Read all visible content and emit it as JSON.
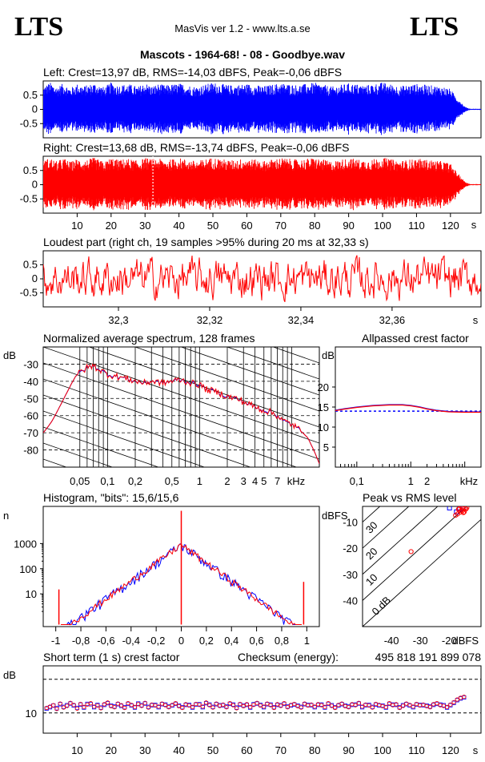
{
  "header": {
    "logo_left": "LTS",
    "logo_right": "LTS",
    "app": "MasVis ver 1.2 - www.lts.a.se",
    "file_title": "Mascots - 1964-68! - 08 - Goodbye.wav"
  },
  "colors": {
    "left": "#0000ff",
    "right": "#ff0000",
    "accent": "#ff0000"
  },
  "chart_data": [
    {
      "id": "left",
      "type": "line",
      "title": "Left: Crest=13,97 dB, RMS=-14,03 dBFS, Peak=-0,06 dBFS",
      "xlim": [
        0,
        129
      ],
      "ylim": [
        -1,
        1
      ],
      "y_ticks": [
        "0.5",
        "0",
        "-0.5"
      ],
      "envelope": {
        "x": [
          0,
          2,
          4,
          6,
          8,
          10,
          12,
          15,
          18,
          20,
          22,
          25,
          28,
          30,
          32,
          34,
          36,
          40,
          45,
          50,
          55,
          60,
          65,
          70,
          75,
          80,
          85,
          90,
          95,
          100,
          105,
          110,
          115,
          118,
          120,
          121,
          122,
          123,
          124,
          125,
          126
        ],
        "upper": [
          0.8,
          0.95,
          0.8,
          0.92,
          0.75,
          0.9,
          0.82,
          0.93,
          0.78,
          0.95,
          0.85,
          0.9,
          0.8,
          0.94,
          0.82,
          0.9,
          0.85,
          0.92,
          0.8,
          0.95,
          0.85,
          0.9,
          0.82,
          0.93,
          0.86,
          0.94,
          0.8,
          0.92,
          0.85,
          0.95,
          0.82,
          0.9,
          0.84,
          0.8,
          0.72,
          0.55,
          0.4,
          0.28,
          0.12,
          0.05,
          0.02
        ]
      }
    },
    {
      "id": "right",
      "type": "line",
      "title": "Right: Crest=13,68 dB, RMS=-13,74 dBFS, Peak=-0,06 dBFS",
      "xlim": [
        0,
        129
      ],
      "ylim": [
        -1,
        1
      ],
      "y_ticks": [
        "0.5",
        "0",
        "-0.5"
      ],
      "x_ticks": [
        "10",
        "20",
        "30",
        "40",
        "50",
        "60",
        "70",
        "80",
        "90",
        "100",
        "110",
        "120"
      ],
      "x_unit": "s",
      "marker_x": 32.33,
      "envelope": {
        "x": [
          0,
          2,
          4,
          6,
          8,
          10,
          12,
          15,
          18,
          20,
          22,
          25,
          28,
          30,
          32,
          34,
          36,
          40,
          45,
          50,
          55,
          60,
          65,
          70,
          75,
          80,
          85,
          90,
          95,
          100,
          105,
          110,
          115,
          118,
          120,
          121,
          122,
          123,
          124,
          125,
          126
        ],
        "upper": [
          0.85,
          0.95,
          0.82,
          0.94,
          0.8,
          0.92,
          0.85,
          0.95,
          0.8,
          0.96,
          0.88,
          0.92,
          0.84,
          0.95,
          0.9,
          0.92,
          0.86,
          0.94,
          0.83,
          0.96,
          0.86,
          0.93,
          0.84,
          0.95,
          0.88,
          0.95,
          0.82,
          0.94,
          0.86,
          0.96,
          0.84,
          0.92,
          0.86,
          0.82,
          0.74,
          0.58,
          0.42,
          0.3,
          0.14,
          0.06,
          0.02
        ]
      }
    },
    {
      "id": "loudest",
      "type": "line",
      "title": "Loudest part (right ch, 19 samples >95% during 20 ms at 32,33 s)",
      "xlim": [
        32.2835,
        32.3795
      ],
      "ylim": [
        -1,
        1
      ],
      "y_ticks": [
        "0.5",
        "0",
        "-0.5"
      ],
      "x_ticks": [
        "32,3",
        "32,32",
        "32,34",
        "32,36"
      ],
      "x_tick_values": [
        32.3,
        32.32,
        32.34,
        32.36
      ],
      "x_unit": "s"
    },
    {
      "id": "spectrum",
      "type": "line",
      "title": "Normalized average spectrum, 128 frames",
      "ylabel": "dB",
      "xscale": "log",
      "xlim": [
        0.02,
        20
      ],
      "ylim": [
        -90,
        -20
      ],
      "y_ticks": [
        -30,
        -40,
        -50,
        -60,
        -70,
        -80
      ],
      "x_ticks": [
        "0,05",
        "0,1",
        "0,2",
        "0,5",
        "1",
        "2",
        "3",
        "4",
        "5",
        "7"
      ],
      "x_tick_values": [
        0.05,
        0.1,
        0.2,
        0.5,
        1,
        2,
        3,
        4,
        5,
        7
      ],
      "x_unit": "kHz",
      "series": [
        {
          "x": [
            0.02,
            0.025,
            0.03,
            0.035,
            0.04,
            0.045,
            0.05,
            0.06,
            0.07,
            0.08,
            0.1,
            0.12,
            0.15,
            0.2,
            0.25,
            0.3,
            0.4,
            0.5,
            0.6,
            0.8,
            1,
            1.2,
            1.5,
            2,
            2.5,
            3,
            4,
            5,
            6,
            7,
            8,
            10,
            12,
            15,
            20
          ],
          "y": [
            -70,
            -63,
            -55,
            -48,
            -42,
            -37,
            -35,
            -32,
            -31,
            -33,
            -36,
            -37,
            -38,
            -40,
            -41,
            -40,
            -41,
            -40,
            -39,
            -41,
            -42,
            -45,
            -46,
            -49,
            -50,
            -52,
            -55,
            -57,
            -58,
            -60,
            -63,
            -65,
            -68,
            -73,
            -88
          ]
        }
      ]
    },
    {
      "id": "allpass",
      "type": "line",
      "title": "Allpassed crest factor",
      "ylabel": "dB",
      "xscale": "log",
      "xlim": [
        0.04,
        20
      ],
      "ylim": [
        0,
        30
      ],
      "y_ticks": [
        20,
        15,
        10,
        5
      ],
      "x_ticks": [
        "0,1",
        "1",
        "2",
        "kHz"
      ],
      "x_tick_values": [
        0.1,
        1,
        2
      ],
      "reference": 13.97,
      "series": [
        {
          "x": [
            0.04,
            0.06,
            0.1,
            0.2,
            0.4,
            0.7,
            1,
            1.5,
            2,
            3,
            5,
            10,
            20
          ],
          "y": [
            14.2,
            14.6,
            15.0,
            15.4,
            15.6,
            15.6,
            15.4,
            15.0,
            14.6,
            14.2,
            13.9,
            13.8,
            13.8
          ]
        },
        {
          "x": [
            0.04,
            0.06,
            0.1,
            0.2,
            0.4,
            0.7,
            1,
            1.5,
            2,
            3,
            5,
            10,
            20
          ],
          "y": [
            14.1,
            14.5,
            14.9,
            15.3,
            15.5,
            15.5,
            15.3,
            14.9,
            14.5,
            14.1,
            13.8,
            13.7,
            13.7
          ]
        }
      ]
    },
    {
      "id": "histogram",
      "type": "line",
      "title": "Histogram, \"bits\": 15,6/15,6",
      "ylabel": "n",
      "yscale": "log",
      "xlim": [
        -1.1,
        1.1
      ],
      "ylim": [
        0.5,
        30000
      ],
      "y_ticks": [
        "1000",
        "100",
        "10"
      ],
      "y_tick_values": [
        1000,
        100,
        10
      ],
      "x_ticks": [
        "-1",
        "-0,8",
        "-0,6",
        "-0,4",
        "-0,2",
        "0",
        "0,2",
        "0,4",
        "0,6",
        "0,8",
        "1"
      ],
      "x_tick_values": [
        -1,
        -0.8,
        -0.6,
        -0.4,
        -0.2,
        0,
        0.2,
        0.4,
        0.6,
        0.8,
        1
      ],
      "peak_center": 900,
      "spikes": [
        {
          "x": -0.975,
          "y": 15
        },
        {
          "x": 0,
          "y": 20000
        },
        {
          "x": 0.975,
          "y": 30
        }
      ]
    },
    {
      "id": "peak_vs_rms",
      "type": "scatter",
      "title": "Peak vs RMS level",
      "ylabel": "dBFS",
      "xlabel": "dBFS",
      "xlim": [
        -50,
        -9
      ],
      "ylim": [
        -50,
        -4
      ],
      "y_ticks": [
        -10,
        -20,
        -30,
        -40
      ],
      "x_ticks": [
        "-40",
        "-30",
        "-20"
      ],
      "x_tick_values": [
        -40,
        -30,
        -20
      ],
      "diagonals": [
        {
          "label": "0 dB",
          "offset": 0
        },
        {
          "label": "10",
          "offset": 10
        },
        {
          "label": "20",
          "offset": 20
        },
        {
          "label": "30",
          "offset": 30
        },
        {
          "label": "40",
          "offset": 40
        }
      ],
      "points_right": [
        [
          -16.2,
          -6.2
        ],
        [
          -15.8,
          -5.5
        ],
        [
          -15.3,
          -4.8
        ],
        [
          -17.1,
          -6.9
        ],
        [
          -14.6,
          -4.6
        ],
        [
          -16.8,
          -5.1
        ],
        [
          -15.1,
          -6.4
        ],
        [
          -14.2,
          -5.0
        ],
        [
          -17.8,
          -7.4
        ],
        [
          -13.9,
          -4.5
        ],
        [
          -33.2,
          -21.3
        ],
        [
          -15.5,
          -5.8
        ],
        [
          -16.5,
          -4.9
        ],
        [
          -14.8,
          -6.1
        ]
      ],
      "points_left": [
        [
          -16.4,
          -5.0
        ],
        [
          -19.9,
          -4.6
        ],
        [
          -17.5,
          -6.1
        ],
        [
          -15.2,
          -4.7
        ]
      ]
    },
    {
      "id": "short_term_crest",
      "type": "scatter",
      "title": "Short term (1 s) crest factor",
      "ylabel": "dB",
      "xlim": [
        0,
        129
      ],
      "ylim": [
        4,
        24
      ],
      "y_ticks": [
        "10"
      ],
      "y_tick_values": [
        10
      ],
      "dashed_levels": [
        10,
        20
      ],
      "x_ticks": [
        "10",
        "20",
        "30",
        "40",
        "50",
        "60",
        "70",
        "80",
        "90",
        "100",
        "110",
        "120"
      ],
      "x_tick_values": [
        10,
        20,
        30,
        40,
        50,
        60,
        70,
        80,
        90,
        100,
        110,
        120
      ],
      "x_unit": "s",
      "checksum_label": "Checksum (energy):",
      "checksum_value": "495 818 191 899 078",
      "red": [
        11.5,
        11.9,
        12.3,
        11.2,
        12.8,
        11.6,
        12.1,
        13.0,
        12.4,
        11.3,
        12.7,
        11.8,
        12.5,
        12.9,
        11.9,
        12.2,
        11.4,
        12.6,
        13.1,
        12.0,
        11.7,
        12.8,
        12.3,
        11.5,
        12.9,
        12.4,
        11.8,
        12.6,
        12.1,
        13.0,
        11.6,
        12.5,
        12.2,
        11.9,
        12.8,
        12.3,
        11.7,
        12.4,
        12.9,
        12.0,
        11.5,
        12.6,
        12.2,
        11.8,
        12.7,
        12.4,
        11.9,
        13.1,
        12.3,
        11.6,
        12.8,
        12.1,
        12.5,
        11.7,
        12.9,
        12.3,
        11.4,
        12.7,
        12.0,
        12.6,
        11.8,
        12.4,
        13.0,
        12.2,
        11.9,
        12.8,
        12.3,
        11.5,
        12.6,
        12.1,
        12.9,
        11.7,
        12.4,
        12.7,
        12.0,
        11.6,
        12.8,
        12.2,
        12.5,
        11.9,
        12.6,
        12.3,
        11.8,
        12.9,
        12.1,
        11.5,
        12.4,
        12.8,
        12.0,
        11.7,
        12.6,
        12.3,
        13.0,
        11.9,
        12.5,
        12.2,
        11.6,
        12.7,
        12.4,
        12.0,
        11.8,
        12.9,
        12.3,
        12.6,
        11.5,
        12.1,
        12.8,
        12.4,
        11.9,
        12.7,
        12.2,
        12.5,
        12.0,
        11.7,
        12.6,
        12.9,
        12.3,
        12.1,
        11.8,
        12.5,
        13.2,
        14.0,
        14.5,
        14.8
      ],
      "blue": [
        11.3,
        11.7,
        12.2,
        11.4,
        12.6,
        11.8,
        12.3,
        12.8,
        12.2,
        11.5,
        12.5,
        11.6,
        12.7,
        12.6,
        11.7,
        12.4,
        11.6,
        12.4,
        12.9,
        12.2,
        11.9,
        12.6,
        12.1,
        11.7,
        12.7,
        12.2,
        11.6,
        12.8,
        12.3,
        12.8,
        11.8,
        12.3,
        12.4,
        11.7,
        12.6,
        12.5,
        11.9,
        12.2,
        12.7,
        12.2,
        11.7,
        12.4,
        12.4,
        11.6,
        12.5,
        12.6,
        11.7,
        12.9,
        12.5,
        11.8,
        12.6,
        12.3,
        12.3,
        11.9,
        12.7,
        12.5,
        11.6,
        12.5,
        12.2,
        12.4,
        11.6,
        12.6,
        12.8,
        12.4,
        11.7,
        12.6,
        12.5,
        11.7,
        12.4,
        12.3,
        12.7,
        11.9,
        12.2,
        12.5,
        12.2,
        11.8,
        12.6,
        12.4,
        12.3,
        11.7,
        12.4,
        12.5,
        11.6,
        12.7,
        12.3,
        11.7,
        12.2,
        12.6,
        12.2,
        11.9,
        12.4,
        12.5,
        12.8,
        11.7,
        12.3,
        12.4,
        11.8,
        12.5,
        12.2,
        12.2,
        11.6,
        12.7,
        12.5,
        12.4,
        11.7,
        12.3,
        12.6,
        12.2,
        11.7,
        12.5,
        12.4,
        12.3,
        12.2,
        11.9,
        12.4,
        12.7,
        12.5,
        12.3,
        11.6,
        12.3,
        13.0,
        13.8,
        14.3,
        14.6
      ]
    }
  ]
}
